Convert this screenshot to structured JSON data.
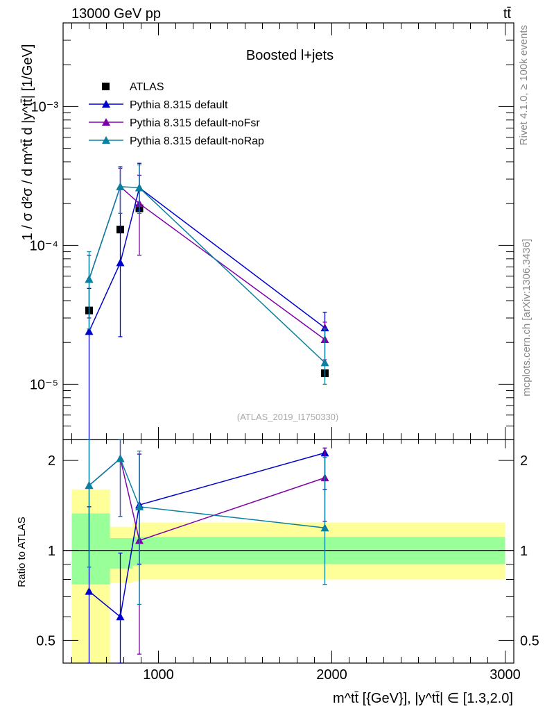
{
  "header": {
    "left": "13000 GeV pp",
    "right": "tt̄"
  },
  "side": {
    "rivet": "Rivet 4.1.0, ≥ 100k events",
    "mcplots": "mcplots.cern.ch [arXiv:1306.3436]"
  },
  "chart_data": [
    {
      "type": "scatter",
      "panel": "main",
      "title": "Boosted l+jets",
      "ylabel": "1 / σ d²σ / d m^tt̄ d |y^tt̄| [1/GeV]",
      "yscale": "log",
      "ylim": [
        4e-06,
        0.004
      ],
      "xlim": [
        450,
        3050
      ],
      "source_label": "(ATLAS_2019_I1750330)",
      "ytick_labels": [
        "10⁻⁵",
        "10⁻⁴",
        "10⁻³"
      ],
      "ytick_values": [
        1e-05,
        0.0001,
        0.001
      ],
      "legend_position": "top-left",
      "series": [
        {
          "name": "ATLAS",
          "color": "#000000",
          "marker": "square",
          "x": [
            600,
            780,
            890,
            1960
          ],
          "y": [
            3.4e-05,
            0.00013,
            0.000185,
            1.2e-05
          ]
        },
        {
          "name": "Pythia 8.315 default",
          "color": "#0000cc",
          "marker": "triangle",
          "x": [
            600,
            780,
            890,
            1960
          ],
          "y": [
            2.4e-05,
            7.5e-05,
            0.00026,
            2.55e-05
          ],
          "err_lo": [
            3e-06,
            2.2e-05,
            0.00018,
            2e-05
          ],
          "err_hi": [
            4.9e-05,
            0.00036,
            0.00039,
            3.3e-05
          ]
        },
        {
          "name": "Pythia 8.315 default-noFsr",
          "color": "#7f00aa",
          "marker": "triangle",
          "x": [
            600,
            780,
            890,
            1960
          ],
          "y": [
            5.7e-05,
            0.000265,
            0.0002,
            2.1e-05
          ],
          "err_lo": [
            3e-05,
            0.00017,
            8.5e-05,
            1.5e-05
          ],
          "err_hi": [
            8.5e-05,
            0.00036,
            0.00032,
            2.8e-05
          ]
        },
        {
          "name": "Pythia 8.315 default-noRap",
          "color": "#0880a0",
          "marker": "triangle",
          "x": [
            600,
            780,
            890,
            1960
          ],
          "y": [
            5.7e-05,
            0.000265,
            0.00026,
            1.43e-05
          ],
          "err_lo": [
            2.5e-05,
            0.00017,
            0.00017,
            1e-05
          ],
          "err_hi": [
            9e-05,
            0.00037,
            0.00038,
            2.5e-05
          ]
        }
      ]
    },
    {
      "type": "scatter",
      "panel": "ratio",
      "ylabel": "Ratio to ATLAS",
      "xlabel": "m^tt̄ [{GeV}], |y^tt̄| ∈ [1.3,2.0]",
      "yscale": "log",
      "ylim": [
        0.42,
        2.35
      ],
      "xlim": [
        450,
        3050
      ],
      "xtick_labels": [
        "1000",
        "2000",
        "3000"
      ],
      "xtick_values": [
        1000,
        2000,
        3000
      ],
      "ytick_labels": [
        "0.5",
        "1",
        "2"
      ],
      "ytick_values": [
        0.5,
        1,
        2
      ],
      "bands": [
        {
          "x0": 500,
          "x1": 720,
          "yellow": [
            0.4,
            1.6
          ],
          "green": [
            0.77,
            1.33
          ]
        },
        {
          "x0": 720,
          "x1": 850,
          "yellow": [
            0.78,
            1.2
          ],
          "green": [
            0.87,
            1.1
          ]
        },
        {
          "x0": 850,
          "x1": 900,
          "yellow": [
            0.79,
            1.24
          ],
          "green": [
            0.89,
            1.11
          ]
        },
        {
          "x0": 900,
          "x1": 3000,
          "yellow": [
            0.8,
            1.24
          ],
          "green": [
            0.9,
            1.11
          ]
        }
      ],
      "series": [
        {
          "name": "Pythia 8.315 default",
          "color": "#0000cc",
          "x": [
            600,
            780,
            890,
            1960
          ],
          "y": [
            0.73,
            0.6,
            1.42,
            2.12
          ],
          "err_lo": [
            0.3,
            0.3,
            0.9,
            1.6
          ],
          "err_hi": [
            1.4,
            0.98,
            2.1,
            2.2
          ]
        },
        {
          "name": "Pythia 8.315 default-noFsr",
          "color": "#7f00aa",
          "x": [
            600,
            780,
            890,
            1960
          ],
          "y": [
            1.65,
            2.03,
            1.08,
            1.75
          ],
          "err_lo": [
            0.88,
            1.3,
            0.45,
            1.25
          ],
          "err_hi": [
            2.4,
            2.4,
            2.1,
            2.2
          ]
        },
        {
          "name": "Pythia 8.315 default-noRap",
          "color": "#0880a0",
          "x": [
            600,
            780,
            890,
            1960
          ],
          "y": [
            1.65,
            2.03,
            1.4,
            1.19
          ],
          "err_lo": [
            0.88,
            1.3,
            0.66,
            0.77
          ],
          "err_hi": [
            2.4,
            2.4,
            2.15,
            2.05
          ]
        }
      ]
    }
  ]
}
